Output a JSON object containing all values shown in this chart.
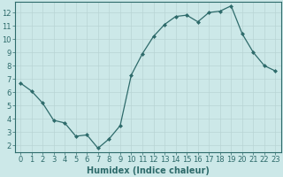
{
  "x": [
    0,
    1,
    2,
    3,
    4,
    5,
    6,
    7,
    8,
    9,
    10,
    11,
    12,
    13,
    14,
    15,
    16,
    17,
    18,
    19,
    20,
    21,
    22,
    23
  ],
  "y": [
    6.7,
    6.1,
    5.2,
    3.9,
    3.7,
    2.7,
    2.8,
    1.8,
    2.5,
    3.5,
    7.3,
    8.9,
    10.2,
    11.1,
    11.7,
    11.8,
    11.3,
    12.0,
    12.1,
    12.5,
    10.4,
    9.0,
    8.0,
    7.6
  ],
  "line_color": "#2e6b6b",
  "marker": "D",
  "marker_size": 2.0,
  "bg_color": "#cce8e8",
  "grid_color": "#b8d4d4",
  "xlabel": "Humidex (Indice chaleur)",
  "xlim": [
    -0.5,
    23.5
  ],
  "ylim": [
    1.5,
    12.8
  ],
  "yticks": [
    2,
    3,
    4,
    5,
    6,
    7,
    8,
    9,
    10,
    11,
    12
  ],
  "xticks": [
    0,
    1,
    2,
    3,
    4,
    5,
    6,
    7,
    8,
    9,
    10,
    11,
    12,
    13,
    14,
    15,
    16,
    17,
    18,
    19,
    20,
    21,
    22,
    23
  ],
  "tick_color": "#2e6b6b",
  "spine_color": "#2e6b6b",
  "label_fontsize": 7,
  "tick_fontsize": 6
}
